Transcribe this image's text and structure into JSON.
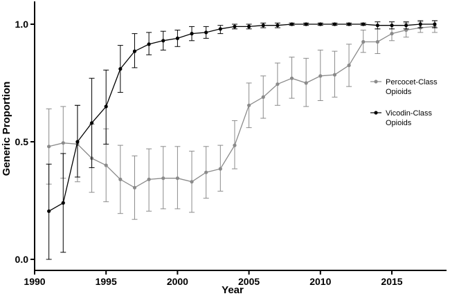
{
  "chart_data": {
    "type": "line",
    "title": "",
    "xlabel": "Year",
    "ylabel": "Generic Proportion",
    "xlim": [
      1990,
      2018
    ],
    "ylim": [
      0,
      1.05
    ],
    "x_ticks": [
      1990,
      1995,
      2000,
      2005,
      2010,
      2015
    ],
    "x_tick_labels": [
      "1990",
      "1995",
      "2000",
      "2005",
      "2010",
      "2015"
    ],
    "y_ticks": [
      0,
      0.5,
      1
    ],
    "y_tick_labels": [
      "0.0",
      "0.5",
      "1.0"
    ],
    "grid": false,
    "legend_position": "right",
    "x": [
      1991,
      1992,
      1993,
      1994,
      1995,
      1996,
      1997,
      1998,
      1999,
      2000,
      2001,
      2002,
      2003,
      2004,
      2005,
      2006,
      2007,
      2008,
      2009,
      2010,
      2011,
      2012,
      2013,
      2014,
      2015,
      2016,
      2017,
      2018
    ],
    "series": [
      {
        "name": "Percocet-Class Opioids",
        "color": "#8a8a8a",
        "values": [
          0.48,
          0.495,
          0.49,
          0.43,
          0.4,
          0.34,
          0.305,
          0.34,
          0.345,
          0.345,
          0.33,
          0.37,
          0.385,
          0.485,
          0.655,
          0.69,
          0.745,
          0.77,
          0.75,
          0.78,
          0.785,
          0.825,
          0.925,
          0.925,
          0.96,
          0.975,
          0.985,
          0.99
        ],
        "err_low": [
          0.32,
          0.345,
          0.33,
          0.285,
          0.245,
          0.195,
          0.17,
          0.205,
          0.215,
          0.215,
          0.2,
          0.26,
          0.29,
          0.385,
          0.56,
          0.6,
          0.655,
          0.685,
          0.65,
          0.675,
          0.69,
          0.735,
          0.88,
          0.875,
          0.93,
          0.945,
          0.965,
          0.965
        ],
        "err_high": [
          0.64,
          0.65,
          0.655,
          0.575,
          0.555,
          0.485,
          0.44,
          0.47,
          0.48,
          0.48,
          0.46,
          0.48,
          0.485,
          0.59,
          0.75,
          0.78,
          0.835,
          0.86,
          0.855,
          0.89,
          0.885,
          0.915,
          0.975,
          0.98,
          0.995,
          1.005,
          1.01,
          1.015
        ]
      },
      {
        "name": "Vicodin-Class Opioids",
        "color": "#000000",
        "values": [
          0.205,
          0.24,
          0.5,
          0.58,
          0.65,
          0.81,
          0.885,
          0.915,
          0.93,
          0.94,
          0.96,
          0.965,
          0.98,
          0.99,
          0.99,
          0.995,
          0.995,
          1.0,
          1.0,
          1.0,
          1.0,
          1.0,
          1.0,
          0.995,
          0.995,
          0.995,
          1.0,
          1.0
        ],
        "err_low": [
          0.0,
          0.03,
          0.35,
          0.39,
          0.49,
          0.71,
          0.815,
          0.87,
          0.89,
          0.905,
          0.93,
          0.94,
          0.96,
          0.98,
          0.98,
          0.985,
          0.985,
          0.995,
          0.995,
          0.995,
          0.995,
          0.995,
          0.995,
          0.98,
          0.98,
          0.98,
          0.985,
          0.985
        ],
        "err_high": [
          0.405,
          0.45,
          0.655,
          0.77,
          0.805,
          0.91,
          0.96,
          0.965,
          0.97,
          0.975,
          0.99,
          0.99,
          0.995,
          1.0,
          1.0,
          1.005,
          1.005,
          1.005,
          1.005,
          1.005,
          1.005,
          1.005,
          1.005,
          1.01,
          1.01,
          1.01,
          1.015,
          1.015
        ]
      }
    ],
    "legend": [
      {
        "label_line1": "Percocet-Class",
        "label_line2": "Opioids",
        "color": "#8a8a8a"
      },
      {
        "label_line1": "Vicodin-Class",
        "label_line2": "Opioids",
        "color": "#000000"
      }
    ]
  }
}
